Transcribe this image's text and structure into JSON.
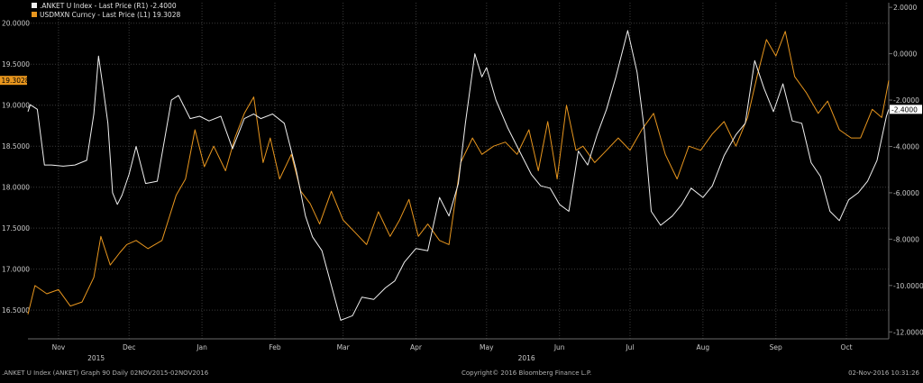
{
  "chart_data": {
    "type": "line",
    "legend": {
      "placement": "top-left",
      "entries": [
        {
          "series": "anket",
          "text": ".ANKET U Index - Last Price (R1) -2.4000"
        },
        {
          "series": "usdmxn",
          "text": "USDMXN Curncy - Last Price (L1) 19.3028"
        }
      ]
    },
    "colors": {
      "background": "#000000",
      "grid": "#3a3a3a",
      "axis_text": "#c8c8c8",
      "anket": "#f0f0f0",
      "usdmxn": "#e8961e"
    },
    "x_axis": {
      "range": [
        "2015-11-02",
        "2016-11-02"
      ],
      "month_ticks": [
        {
          "label": "Nov",
          "date": "2015-11-15"
        },
        {
          "label": "Dec",
          "date": "2015-12-15"
        },
        {
          "label": "Jan",
          "date": "2016-01-15"
        },
        {
          "label": "Feb",
          "date": "2016-02-15"
        },
        {
          "label": "Mar",
          "date": "2016-03-15"
        },
        {
          "label": "Apr",
          "date": "2016-04-15"
        },
        {
          "label": "May",
          "date": "2016-05-15"
        },
        {
          "label": "Jun",
          "date": "2016-06-15"
        },
        {
          "label": "Jul",
          "date": "2016-07-15"
        },
        {
          "label": "Aug",
          "date": "2016-08-15"
        },
        {
          "label": "Sep",
          "date": "2016-09-15"
        },
        {
          "label": "Oct",
          "date": "2016-10-15"
        }
      ],
      "year_ticks": [
        {
          "label": "2015",
          "date": "2015-12-01"
        },
        {
          "label": "2016",
          "date": "2016-06-01"
        }
      ]
    },
    "y_left": {
      "ylim": [
        16.15,
        20.25
      ],
      "ticks": [
        "16.5000",
        "17.0000",
        "17.5000",
        "18.0000",
        "18.5000",
        "19.0000",
        "19.5000",
        "20.0000"
      ],
      "last_label": "19.3028",
      "last_value": 19.3028
    },
    "y_right": {
      "ylim": [
        -12.3,
        2.2
      ],
      "ticks": [
        "-12.0000",
        "-10.0000",
        "-8.0000",
        "-6.0000",
        "-4.0000",
        "-2.0000",
        "0.0000",
        "2.0000"
      ],
      "last_label": "-2.4000",
      "last_value": -2.4
    },
    "grid": true,
    "series": [
      {
        "key": "usdmxn",
        "axis": "left",
        "x": [
          "2015-11-02",
          "2015-11-05",
          "2015-11-10",
          "2015-11-15",
          "2015-11-20",
          "2015-11-25",
          "2015-11-30",
          "2015-12-03",
          "2015-12-07",
          "2015-12-11",
          "2015-12-14",
          "2015-12-18",
          "2015-12-23",
          "2015-12-29",
          "2016-01-04",
          "2016-01-08",
          "2016-01-12",
          "2016-01-16",
          "2016-01-20",
          "2016-01-25",
          "2016-01-29",
          "2016-02-02",
          "2016-02-06",
          "2016-02-10",
          "2016-02-13",
          "2016-02-17",
          "2016-02-22",
          "2016-02-26",
          "2016-03-01",
          "2016-03-05",
          "2016-03-10",
          "2016-03-15",
          "2016-03-20",
          "2016-03-25",
          "2016-03-30",
          "2016-04-04",
          "2016-04-08",
          "2016-04-12",
          "2016-04-16",
          "2016-04-20",
          "2016-04-25",
          "2016-04-29",
          "2016-05-04",
          "2016-05-09",
          "2016-05-13",
          "2016-05-18",
          "2016-05-23",
          "2016-05-28",
          "2016-06-02",
          "2016-06-06",
          "2016-06-10",
          "2016-06-14",
          "2016-06-18",
          "2016-06-22",
          "2016-06-25",
          "2016-06-30",
          "2016-07-05",
          "2016-07-10",
          "2016-07-15",
          "2016-07-20",
          "2016-07-25",
          "2016-07-30",
          "2016-08-04",
          "2016-08-09",
          "2016-08-14",
          "2016-08-19",
          "2016-08-24",
          "2016-08-29",
          "2016-09-03",
          "2016-09-07",
          "2016-09-11",
          "2016-09-15",
          "2016-09-19",
          "2016-09-23",
          "2016-09-28",
          "2016-10-03",
          "2016-10-07",
          "2016-10-12",
          "2016-10-17",
          "2016-10-21",
          "2016-10-26",
          "2016-10-30",
          "2016-11-02"
        ],
        "values": [
          16.45,
          16.8,
          16.7,
          16.75,
          16.55,
          16.6,
          16.9,
          17.4,
          17.05,
          17.2,
          17.3,
          17.35,
          17.25,
          17.35,
          17.9,
          18.1,
          18.7,
          18.25,
          18.5,
          18.2,
          18.6,
          18.9,
          19.1,
          18.3,
          18.6,
          18.1,
          18.4,
          17.95,
          17.8,
          17.55,
          17.95,
          17.6,
          17.45,
          17.3,
          17.7,
          17.4,
          17.6,
          17.85,
          17.4,
          17.55,
          17.35,
          17.3,
          18.3,
          18.6,
          18.4,
          18.5,
          18.55,
          18.4,
          18.7,
          18.2,
          18.8,
          18.1,
          19.0,
          18.45,
          18.5,
          18.3,
          18.45,
          18.6,
          18.45,
          18.7,
          18.9,
          18.4,
          18.1,
          18.5,
          18.45,
          18.65,
          18.8,
          18.5,
          18.85,
          19.35,
          19.8,
          19.6,
          19.9,
          19.35,
          19.15,
          18.9,
          19.05,
          18.7,
          18.6,
          18.6,
          18.95,
          18.85,
          19.3028
        ]
      },
      {
        "key": "anket",
        "axis": "right",
        "x": [
          "2015-11-02",
          "2015-11-03",
          "2015-11-06",
          "2015-11-09",
          "2015-11-12",
          "2015-11-17",
          "2015-11-22",
          "2015-11-27",
          "2015-11-30",
          "2015-12-01",
          "2015-12-02",
          "2015-12-04",
          "2015-12-06",
          "2015-12-08",
          "2015-12-10",
          "2015-12-12",
          "2015-12-15",
          "2015-12-18",
          "2015-12-22",
          "2015-12-27",
          "2016-01-02",
          "2016-01-05",
          "2016-01-10",
          "2016-01-14",
          "2016-01-18",
          "2016-01-23",
          "2016-01-28",
          "2016-02-02",
          "2016-02-06",
          "2016-02-09",
          "2016-02-14",
          "2016-02-19",
          "2016-02-24",
          "2016-02-28",
          "2016-03-02",
          "2016-03-06",
          "2016-03-10",
          "2016-03-14",
          "2016-03-19",
          "2016-03-23",
          "2016-03-28",
          "2016-04-02",
          "2016-04-06",
          "2016-04-10",
          "2016-04-15",
          "2016-04-20",
          "2016-04-25",
          "2016-04-29",
          "2016-05-03",
          "2016-05-06",
          "2016-05-10",
          "2016-05-13",
          "2016-05-15",
          "2016-05-19",
          "2016-05-24",
          "2016-05-29",
          "2016-06-03",
          "2016-06-07",
          "2016-06-11",
          "2016-06-15",
          "2016-06-19",
          "2016-06-23",
          "2016-06-27",
          "2016-07-01",
          "2016-07-05",
          "2016-07-09",
          "2016-07-12",
          "2016-07-14",
          "2016-07-18",
          "2016-07-21",
          "2016-07-24",
          "2016-07-28",
          "2016-08-02",
          "2016-08-06",
          "2016-08-10",
          "2016-08-15",
          "2016-08-19",
          "2016-08-24",
          "2016-08-29",
          "2016-09-02",
          "2016-09-06",
          "2016-09-10",
          "2016-09-14",
          "2016-09-18",
          "2016-09-22",
          "2016-09-26",
          "2016-09-30",
          "2016-10-04",
          "2016-10-08",
          "2016-10-12",
          "2016-10-16",
          "2016-10-20",
          "2016-10-24",
          "2016-10-28",
          "2016-11-01",
          "2016-11-02"
        ],
        "values": [
          -2.5,
          -2.2,
          -2.4,
          -4.8,
          -4.8,
          -4.85,
          -4.8,
          -4.6,
          -2.6,
          -1.4,
          -0.1,
          -1.5,
          -3.0,
          -6.0,
          -6.5,
          -6.1,
          -5.2,
          -4.0,
          -5.6,
          -5.5,
          -2.0,
          -1.8,
          -2.8,
          -2.7,
          -2.9,
          -2.7,
          -4.1,
          -2.8,
          -2.6,
          -2.8,
          -2.6,
          -3.0,
          -5.0,
          -7.0,
          -7.9,
          -8.5,
          -10.0,
          -11.5,
          -11.3,
          -10.5,
          -10.6,
          -10.1,
          -9.8,
          -9.0,
          -8.4,
          -8.5,
          -6.2,
          -7.0,
          -5.6,
          -3.0,
          0.0,
          -1.0,
          -0.6,
          -2.0,
          -3.2,
          -4.2,
          -5.2,
          -5.7,
          -5.8,
          -6.5,
          -6.8,
          -4.2,
          -4.8,
          -3.5,
          -2.4,
          -1.0,
          0.2,
          1.0,
          -0.8,
          -3.2,
          -6.8,
          -7.4,
          -7.0,
          -6.5,
          -5.8,
          -6.2,
          -5.7,
          -4.4,
          -3.5,
          -3.0,
          -0.3,
          -1.5,
          -2.5,
          -1.3,
          -2.9,
          -3.0,
          -4.7,
          -5.3,
          -6.8,
          -7.2,
          -6.3,
          -6.0,
          -5.5,
          -4.6,
          -2.7,
          -2.4
        ]
      }
    ]
  },
  "footer": {
    "left": ".ANKET U Index (ANKET) Graph 90  Daily 02NOV2015-02NOV2016",
    "center": "Copyright© 2016 Bloomberg Finance L.P.",
    "right": "02-Nov-2016 10:31:26"
  }
}
